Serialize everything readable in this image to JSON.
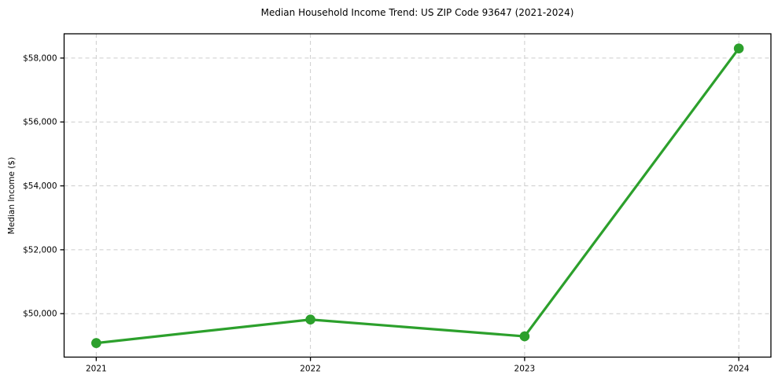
{
  "figure": {
    "background": "#ffffff"
  },
  "chart_data": {
    "type": "line",
    "title": "Median Household Income Trend: US ZIP Code 93647 (2021-2024)",
    "xlabel": "",
    "ylabel": "Median Income ($)",
    "categories": [
      "2021",
      "2022",
      "2023",
      "2024"
    ],
    "series": [
      {
        "name": "Median Household Income",
        "values": [
          49080,
          49815,
          49290,
          58300
        ]
      }
    ],
    "y_ticks": [
      50000,
      52000,
      54000,
      56000,
      58000
    ],
    "y_tick_labels": [
      "$50,000",
      "$52,000",
      "$54,000",
      "$56,000",
      "$58,000"
    ],
    "ylim": [
      48640,
      58760
    ],
    "grid": true,
    "grid_style": "dashed",
    "grid_color": "#cccccc",
    "line_color": "#2ca02c",
    "marker": "circle",
    "axis_color": "#000000",
    "legend": "none"
  }
}
